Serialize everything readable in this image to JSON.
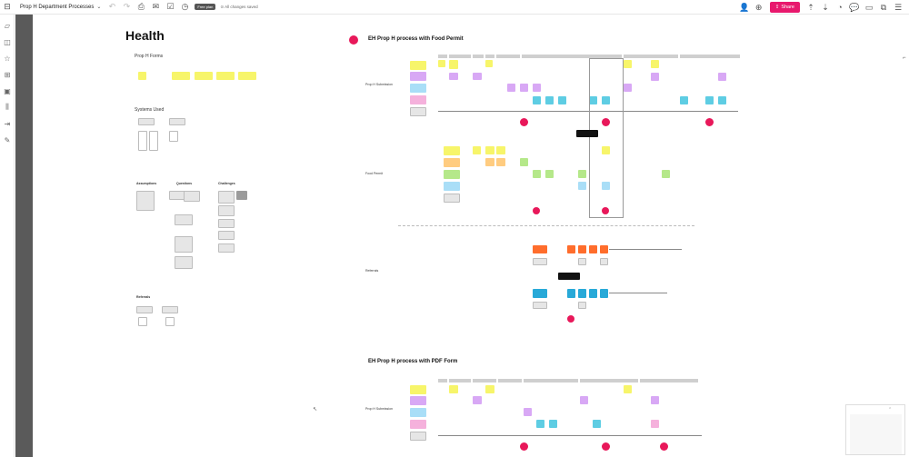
{
  "toolbar": {
    "doc_title": "Prop H Department Processes",
    "badge": "Free plan",
    "status": "All changes saved",
    "share_label": "Share"
  },
  "sidebar": {
    "items": [
      "sticky-note-icon",
      "shapes-icon",
      "star-icon",
      "frame-icon",
      "image-icon",
      "library-icon",
      "embed-icon",
      "pen-icon"
    ]
  },
  "board": {
    "health_title": "Health",
    "prop_h_forms": "Prop H Forms",
    "systems_used": "Systems Used",
    "col_headers": [
      "Assumptions",
      "Questions",
      "Challenges"
    ],
    "referrals_label": "Referrals",
    "food_permit_title": "EH Prop H process with Food Permit",
    "prop_h_submission": "Prop H Submission",
    "food_permit": "Food Permit",
    "referrals_row": "Referrals",
    "pdf_form_title": "EH Prop H process with PDF Form",
    "prop_h_submission_2": "Prop H Submission"
  },
  "colors": {
    "accent": "#e8186d",
    "yellow": "#f7f56a",
    "purple": "#d8a8f5",
    "blue": "#a9def7",
    "pink": "#f5b1dc",
    "green": "#b5e88a",
    "orange": "#ff6d2c",
    "cyan": "#28a9d8",
    "dot": "#e8185a"
  }
}
